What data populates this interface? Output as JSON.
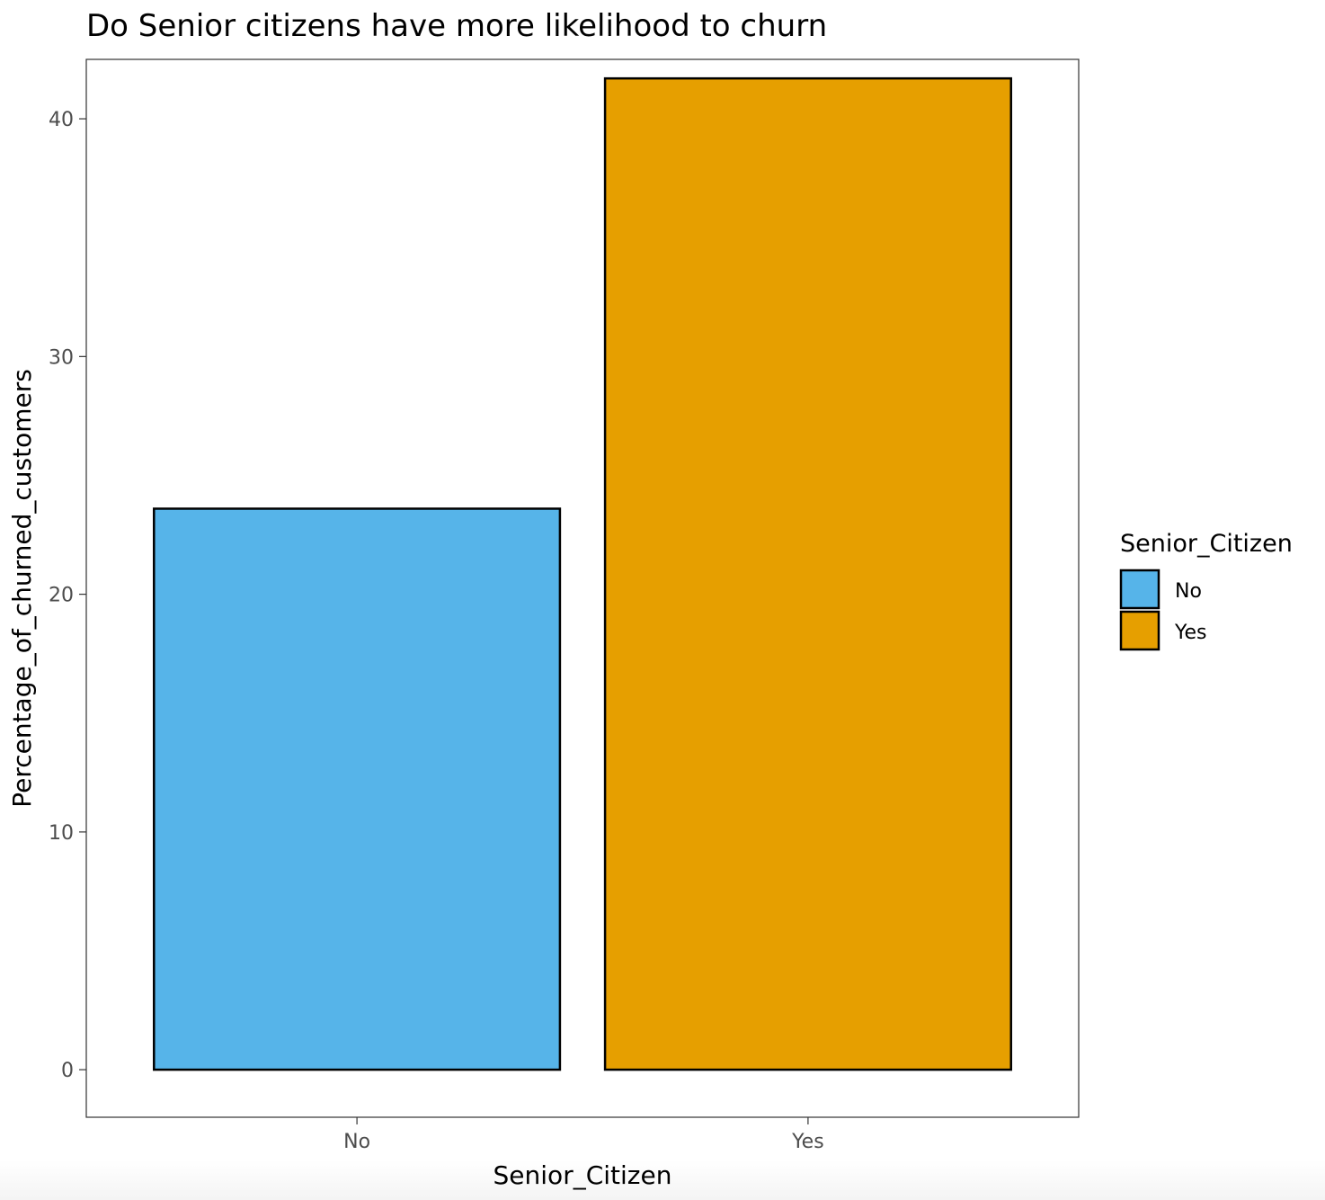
{
  "chart_data": {
    "type": "bar",
    "title": "Do Senior citizens have more likelihood to churn",
    "xlabel": "Senior_Citizen",
    "ylabel": "Percentage_of_churned_customers",
    "categories": [
      "No",
      "Yes"
    ],
    "values": [
      23.6,
      41.7
    ],
    "colors": [
      "#56B4E9",
      "#E69F00"
    ],
    "ylim": [
      -2,
      42.5
    ],
    "yticks": [
      0,
      10,
      20,
      30,
      40
    ],
    "grid": false,
    "legend": {
      "title": "Senior_Citizen",
      "placement": "right",
      "entries": [
        {
          "label": "No",
          "color": "#56B4E9"
        },
        {
          "label": "Yes",
          "color": "#E69F00"
        }
      ]
    }
  }
}
